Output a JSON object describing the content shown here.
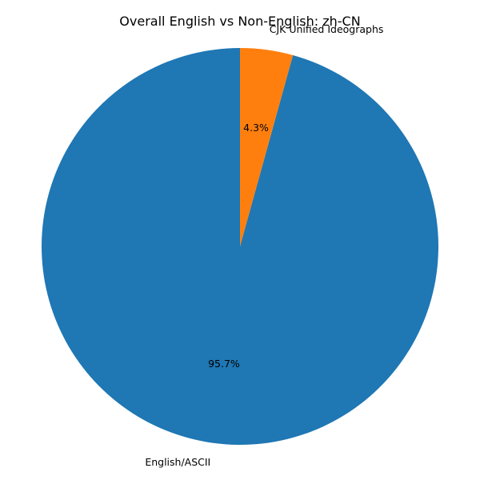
{
  "chart_data": {
    "type": "pie",
    "title": "Overall English vs Non-English: zh-CN",
    "start_angle_deg": 90,
    "direction": "counterclockwise",
    "slices": [
      {
        "label": "English/ASCII",
        "value": 95.7,
        "pct_label": "95.7%",
        "color": "#1f77b4"
      },
      {
        "label": "CJK Unified Ideographs",
        "value": 4.3,
        "pct_label": "4.3%",
        "color": "#ff7f0e"
      }
    ]
  }
}
